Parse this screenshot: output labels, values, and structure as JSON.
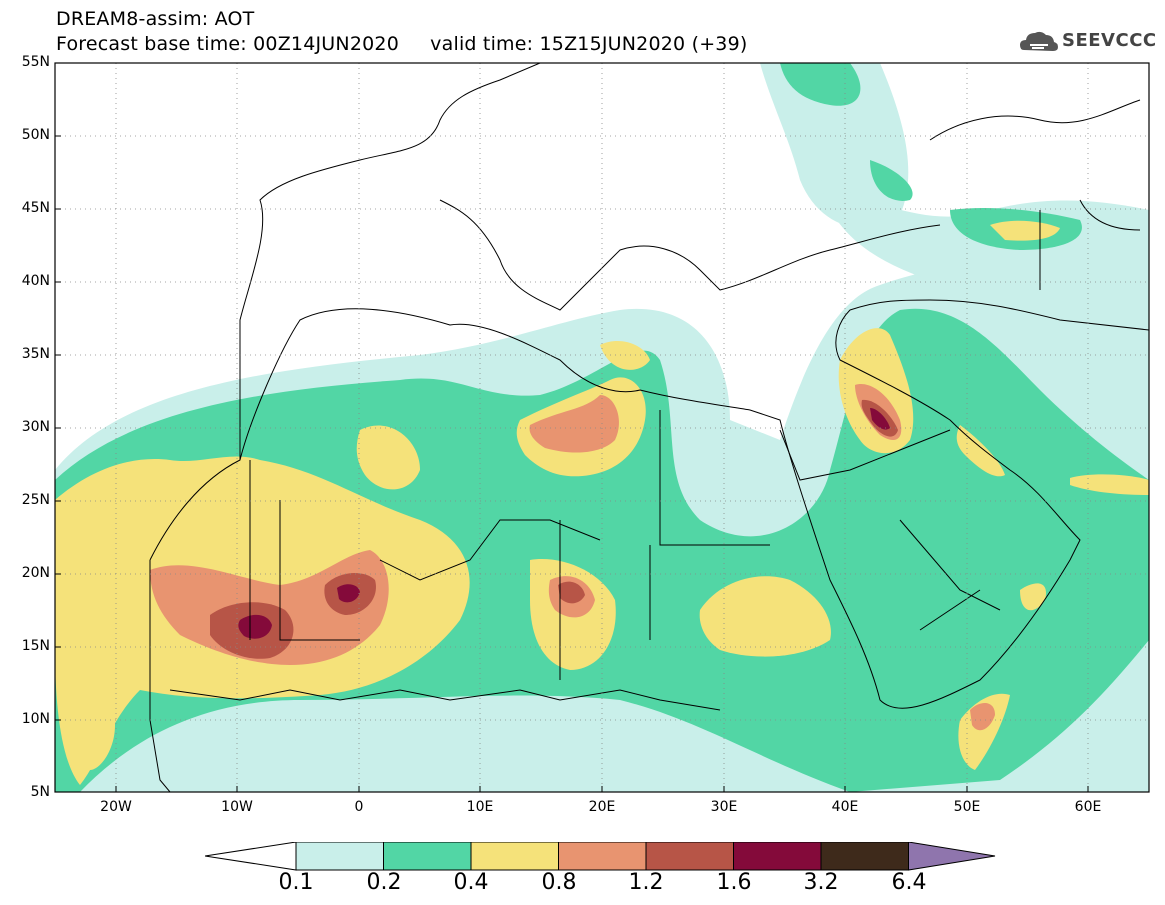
{
  "header": {
    "line1": "DREAM8-assim: AOT",
    "line2": "Forecast base time: 00Z14JUN2020     valid time: 15Z15JUN2020 (+39)",
    "brand": "SEEVCCC",
    "brand_icon": "cloud-icon"
  },
  "map": {
    "variable": "AOT",
    "lat_range": [
      5,
      55
    ],
    "lon_range": [
      -25,
      65
    ],
    "lat_ticks": [
      "55N",
      "50N",
      "45N",
      "40N",
      "35N",
      "30N",
      "25N",
      "20N",
      "15N",
      "10N",
      "5N"
    ],
    "lon_ticks": [
      "20W",
      "10W",
      "0",
      "10E",
      "20E",
      "30E",
      "40E",
      "50E",
      "60E"
    ],
    "grid": "dotted"
  },
  "colorbar": {
    "labels": [
      "0.1",
      "0.2",
      "0.4",
      "0.8",
      "1.2",
      "1.6",
      "3.2",
      "6.4"
    ],
    "colors": [
      "#ffffff",
      "#c9efea",
      "#52d6a5",
      "#f5e27a",
      "#e89470",
      "#b75547",
      "#840a3a",
      "#3e2a1b",
      "#8f75ad"
    ]
  }
}
